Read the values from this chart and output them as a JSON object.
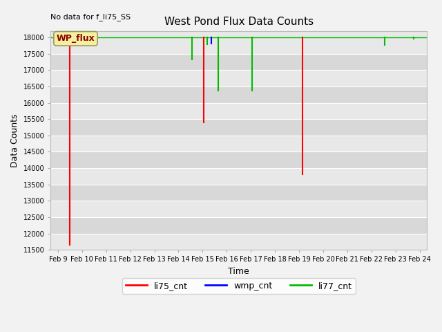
{
  "title": "West Pond Flux Data Counts",
  "xlabel": "Time",
  "ylabel": "Data Counts",
  "annotation": "No data for f_li75_SS",
  "ylim": [
    11500,
    18200
  ],
  "legend_label": "WP_flux",
  "series": {
    "li75_cnt": {
      "color": "#ff0000",
      "segments": [
        [
          [
            9.5,
            9.5
          ],
          [
            18000,
            11650
          ]
        ],
        [
          [
            15.05,
            15.05
          ],
          [
            18000,
            15400
          ]
        ],
        [
          [
            19.15,
            19.15
          ],
          [
            18000,
            13800
          ]
        ]
      ]
    },
    "wmp_cnt": {
      "color": "#0000ff",
      "segments": [
        [
          [
            15.35,
            15.35
          ],
          [
            18000,
            17820
          ]
        ]
      ]
    },
    "li77_cnt": {
      "color": "#00bb00",
      "segments": [
        [
          [
            14.55,
            14.55
          ],
          [
            18000,
            17320
          ]
        ],
        [
          [
            15.2,
            15.2
          ],
          [
            18000,
            17780
          ]
        ],
        [
          [
            15.65,
            15.65
          ],
          [
            18000,
            16380
          ]
        ],
        [
          [
            17.05,
            17.05
          ],
          [
            18000,
            16380
          ]
        ],
        [
          [
            22.55,
            22.55
          ],
          [
            18000,
            17760
          ]
        ],
        [
          [
            23.75,
            23.75
          ],
          [
            18000,
            17960
          ]
        ]
      ],
      "top_line": true
    }
  },
  "fig_bg": "#f2f2f2",
  "plot_bg": "#e8e8e8",
  "band_colors": [
    "#e8e8e8",
    "#d8d8d8"
  ],
  "xtick_labels": [
    "Feb 9",
    "Feb 10",
    "Feb 11",
    "Feb 12",
    "Feb 13",
    "Feb 14",
    "Feb 15",
    "Feb 16",
    "Feb 17",
    "Feb 18",
    "Feb 19",
    "Feb 20",
    "Feb 21",
    "Feb 22",
    "Feb 23",
    "Feb 24"
  ],
  "xtick_positions": [
    9,
    10,
    11,
    12,
    13,
    14,
    15,
    16,
    17,
    18,
    19,
    20,
    21,
    22,
    23,
    24
  ],
  "xlim": [
    8.7,
    24.3
  ],
  "ytick_labels": [
    "11500",
    "12000",
    "12500",
    "13000",
    "13500",
    "14000",
    "14500",
    "15000",
    "15500",
    "16000",
    "16500",
    "17000",
    "17500",
    "18000"
  ],
  "ytick_positions": [
    11500,
    12000,
    12500,
    13000,
    13500,
    14000,
    14500,
    15000,
    15500,
    16000,
    16500,
    17000,
    17500,
    18000
  ]
}
